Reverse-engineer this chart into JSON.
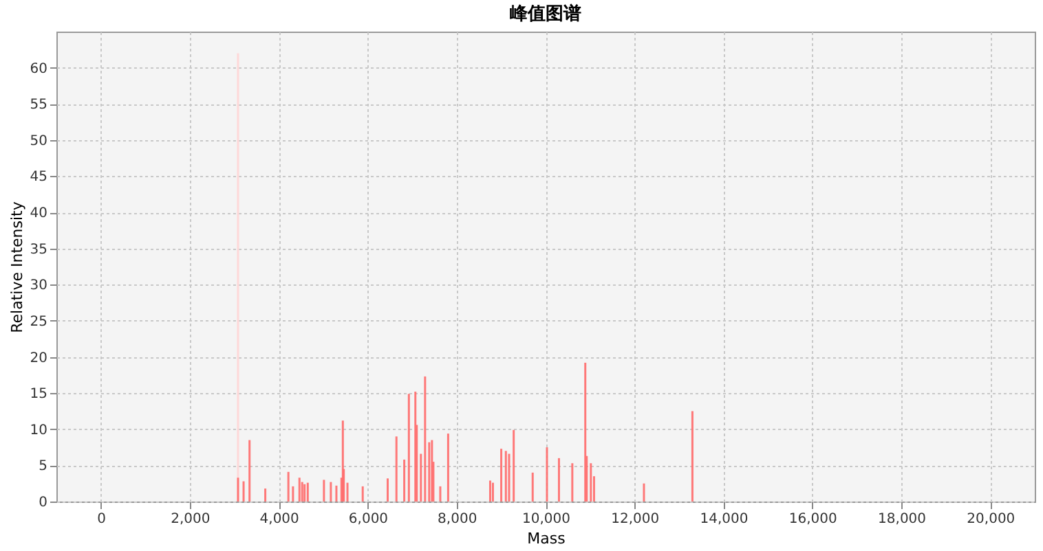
{
  "chart_data": {
    "type": "bar",
    "title": "峰值图谱",
    "xlabel": "Mass",
    "ylabel": "Relative Intensity",
    "xlim": [
      -1000,
      21000
    ],
    "xticks": [
      0,
      {
        "value": 2000,
        "label": "2,000"
      },
      {
        "value": 4000,
        "label": "4,000"
      },
      {
        "value": 6000,
        "label": "6,000"
      },
      {
        "value": 8000,
        "label": "8,000"
      },
      {
        "value": 10000,
        "label": "10,000"
      },
      {
        "value": 12000,
        "label": "12,000"
      },
      {
        "value": 14000,
        "label": "14,000"
      },
      {
        "value": 16000,
        "label": "16,000"
      },
      {
        "value": 18000,
        "label": "18,000"
      },
      {
        "value": 20000,
        "label": "20,000"
      }
    ],
    "ylim": [
      0,
      65
    ],
    "yticks": [
      0,
      5,
      10,
      15,
      20,
      25,
      30,
      35,
      40,
      45,
      50,
      55,
      60
    ],
    "grid": true,
    "series": [
      {
        "color": "#ffd6d6",
        "x": [
          3084
        ],
        "values": [
          62
        ]
      },
      {
        "color": "#ff6a6a",
        "x": [
          3084,
          3209,
          3343,
          3697,
          4216,
          4320,
          4465,
          4527,
          4580,
          4652,
          5016,
          5171,
          5296,
          5410,
          5441,
          5462,
          5545,
          5888,
          6449,
          6646,
          6822,
          6926,
          7072,
          7103,
          7196,
          7290,
          7383,
          7445,
          7477,
          7632,
          7809,
          8754,
          8816,
          9003,
          9107,
          9180,
          9283,
          9710,
          10031,
          10301,
          10601,
          10893,
          10925,
          11018,
          11090,
          12212,
          13302
        ],
        "values": [
          3.3,
          2.8,
          8.5,
          1.8,
          4.1,
          2.1,
          3.3,
          2.7,
          2.4,
          2.6,
          3.0,
          2.7,
          2.2,
          3.3,
          11.2,
          4.5,
          2.6,
          2.1,
          3.2,
          9.0,
          5.8,
          14.9,
          15.2,
          10.6,
          6.6,
          17.3,
          8.2,
          8.5,
          5.5,
          2.1,
          9.4,
          2.9,
          2.6,
          7.3,
          7.0,
          6.6,
          9.9,
          4.0,
          7.5,
          6.0,
          5.3,
          19.2,
          6.3,
          5.3,
          3.5,
          2.5,
          12.5
        ]
      }
    ]
  }
}
